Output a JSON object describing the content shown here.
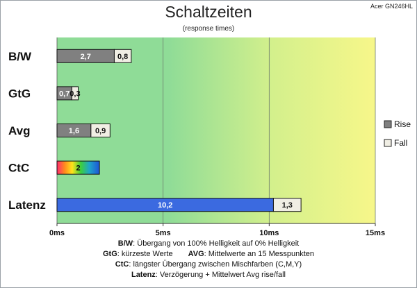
{
  "header": {
    "title": "Schaltzeiten",
    "subtitle": "(response times)",
    "model": "Acer GN246HL"
  },
  "notes": {
    "bw_key": "B/W",
    "bw_text": ": Übergang von 100% Helligkeit auf 0% Helligkeit",
    "gtg_key": "GtG",
    "gtg_text": ": kürzeste Werte",
    "avg_key": "AVG",
    "avg_text": ": Mittelwerte an 15 Messpunkten",
    "ctc_key": "CtC",
    "ctc_text": ": längster Übergang zwischen Mischfarben (C,M,Y)",
    "lat_key": "Latenz",
    "lat_text": ": Verzögerung + Mittelwert Avg rise/fall"
  },
  "colors": {
    "rise": "#808080",
    "fall": "#f0eee4",
    "latenz_rise": "#3b6ae0",
    "bar_border": "#111111",
    "plot_left": "#8fdc97",
    "plot_mid": "#d4f08c",
    "plot_right": "#f7f78a",
    "gridline": "#6a7a6a"
  },
  "chart_data": {
    "type": "bar",
    "orientation": "horizontal",
    "stacked": true,
    "categories": [
      "B/W",
      "GtG",
      "Avg",
      "CtC",
      "Latenz"
    ],
    "series": [
      {
        "name": "Rise",
        "values": [
          2.7,
          0.7,
          1.6,
          2.0,
          10.2
        ],
        "labels": [
          "2,7",
          "0,7",
          "1,6",
          "2",
          "10,2"
        ]
      },
      {
        "name": "Fall",
        "values": [
          0.8,
          0.3,
          0.9,
          null,
          1.3
        ],
        "labels": [
          "0,8",
          "0,3",
          "0,9",
          "",
          "1,3"
        ]
      }
    ],
    "xlim": [
      0,
      15
    ],
    "xticks": [
      0,
      5,
      10,
      15
    ],
    "xtick_labels": [
      "0ms",
      "5ms",
      "10ms",
      "15ms"
    ],
    "grid": "vertical",
    "legend": [
      "Rise",
      "Fall"
    ],
    "legend_position": "right"
  }
}
